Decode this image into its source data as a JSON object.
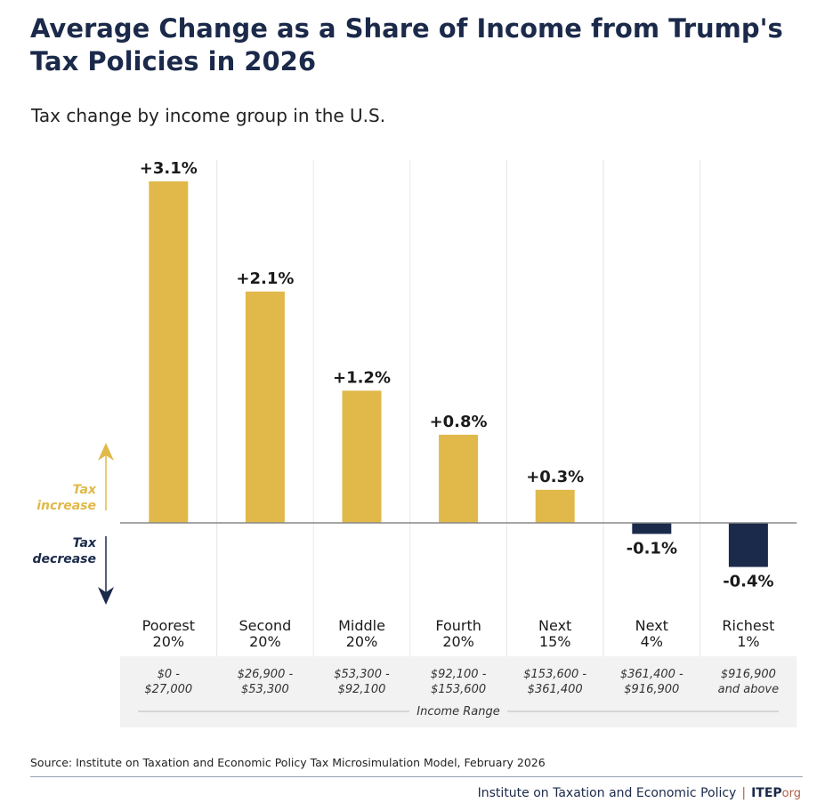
{
  "title": "Average Change as a Share of Income from Trump's Tax Policies in 2026",
  "subtitle": "Tax change by income group in the U.S.",
  "chart_data": {
    "type": "bar",
    "categories": [
      "Poorest 20%",
      "Second 20%",
      "Middle 20%",
      "Fourth 20%",
      "Next 15%",
      "Next 4%",
      "Richest 1%"
    ],
    "category_lines": [
      [
        "Poorest",
        "20%"
      ],
      [
        "Second",
        "20%"
      ],
      [
        "Middle",
        "20%"
      ],
      [
        "Fourth",
        "20%"
      ],
      [
        "Next",
        "15%"
      ],
      [
        "Next",
        "4%"
      ],
      [
        "Richest",
        "1%"
      ]
    ],
    "income_ranges": [
      [
        "$0 -",
        "$27,000"
      ],
      [
        "$26,900 -",
        "$53,300"
      ],
      [
        "$53,300 -",
        "$92,100"
      ],
      [
        "$92,100 -",
        "$153,600"
      ],
      [
        "$153,600 -",
        "$361,400"
      ],
      [
        "$361,400 -",
        "$916,900"
      ],
      [
        "$916,900",
        "and above"
      ]
    ],
    "income_range_label": "Income Range",
    "values": [
      3.1,
      2.1,
      1.2,
      0.8,
      0.3,
      -0.1,
      -0.4
    ],
    "data_labels": [
      "+3.1%",
      "+2.1%",
      "+1.2%",
      "+0.8%",
      "+0.3%",
      "-0.1%",
      "-0.4%"
    ],
    "tax_increase_label": [
      "Tax",
      "increase"
    ],
    "tax_decrease_label": [
      "Tax",
      "decrease"
    ],
    "colors": {
      "increase": "#e0b94a",
      "decrease": "#1b2a4a"
    },
    "grid": true
  },
  "source": "Source: Institute on Taxation and Economic Policy Tax Microsimulation Model, February 2026",
  "org": {
    "name": "Institute on Taxation and Economic Policy",
    "logo": "ITEP",
    "logo_suffix": "org"
  }
}
